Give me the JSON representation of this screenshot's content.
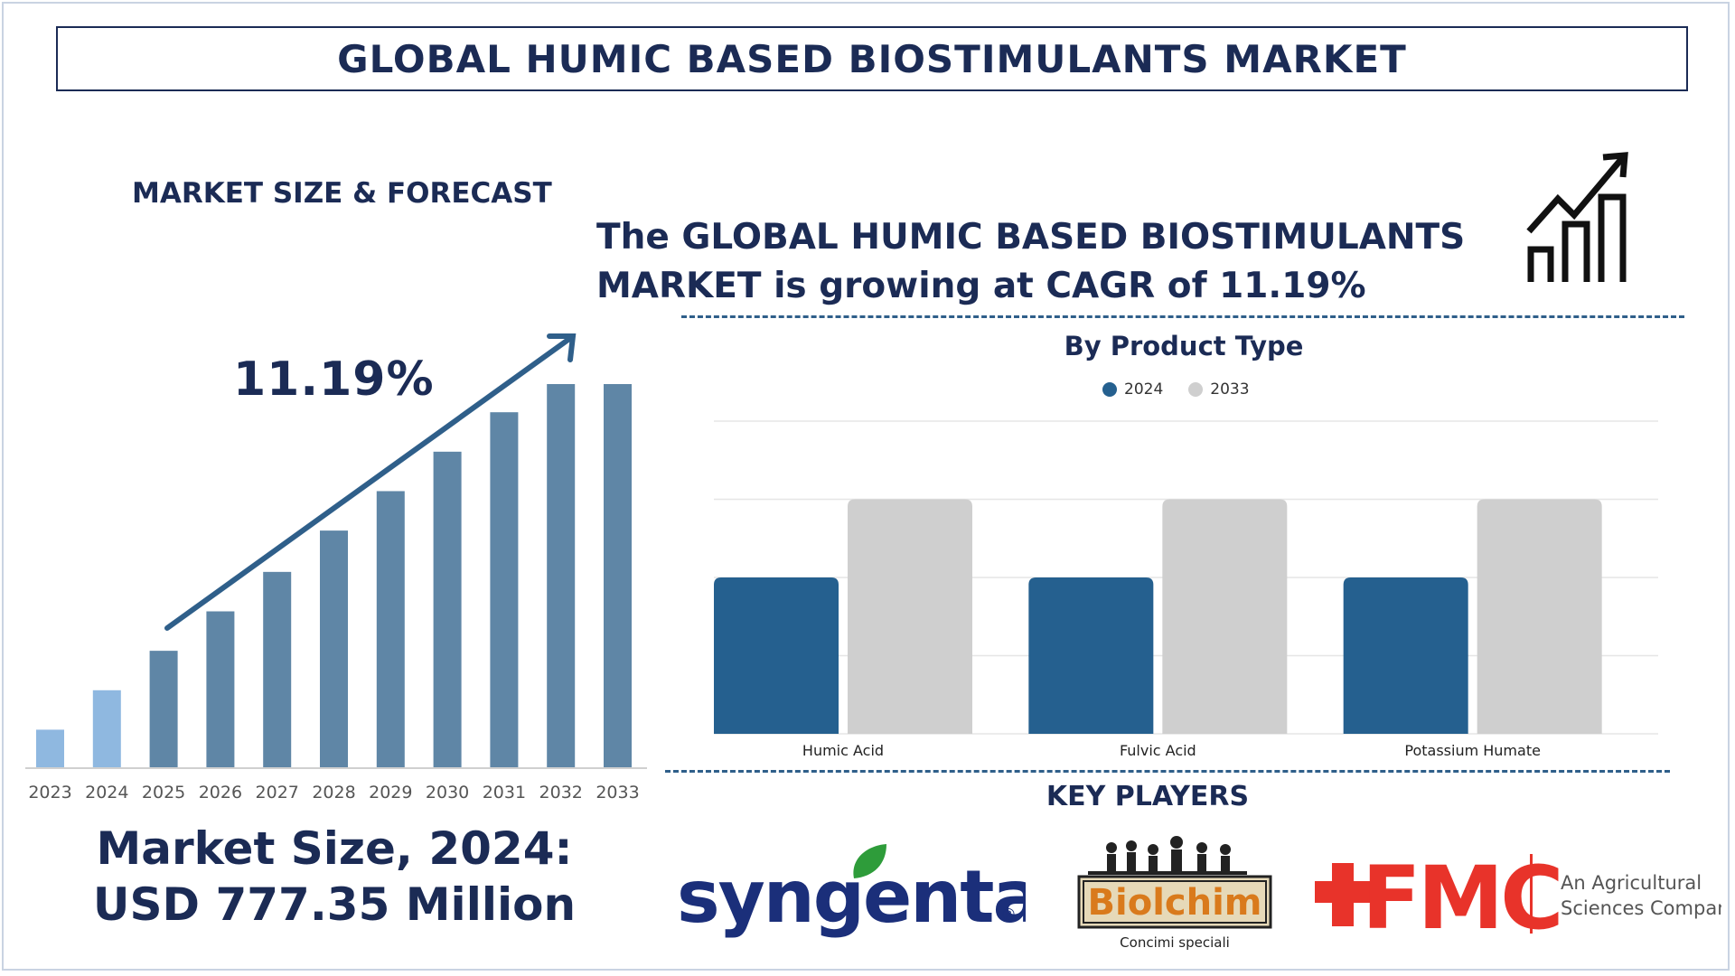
{
  "title": "GLOBAL HUMIC BASED BIOSTIMULANTS MARKET",
  "left": {
    "section_label": "MARKET SIZE & FORECAST",
    "cagr_label": "11.19%",
    "market_size_line1": "Market Size, 2024:",
    "market_size_line2": "USD 777.35 Million"
  },
  "headline": {
    "line1": "The GLOBAL HUMIC BASED BIOSTIMULANTS",
    "line2": "MARKET is growing at CAGR of 11.19%"
  },
  "product_chart_title": "By Product Type",
  "key_players_label": "KEY PLAYERS",
  "key_players": {
    "syngenta": "syngenta",
    "syngenta_mark": "®",
    "biolchim": "Biolchim",
    "biolchim_tagline": "Concimi speciali",
    "fmc": "FMC",
    "fmc_tagline_1": "An Agricultural",
    "fmc_tagline_2": "Sciences Company"
  },
  "icon": "growth-chart-icon",
  "colors": {
    "navy": "#1b2b55",
    "bar_forecast": "#5f86a6",
    "bar_historic": "#8fb8e0",
    "series_2024": "#25608f",
    "series_2033": "#cfcfcf",
    "fmc_red": "#e8332a",
    "syngenta_blue": "#1b2f7a",
    "syngenta_green": "#2e9c3a"
  },
  "chart_data": [
    {
      "type": "bar",
      "title": "",
      "categories": [
        "2023",
        "2024",
        "2025",
        "2026",
        "2027",
        "2028",
        "2029",
        "2030",
        "2031",
        "2032",
        "2033"
      ],
      "values": [
        1.0,
        2.05,
        3.1,
        4.15,
        5.2,
        6.3,
        7.35,
        8.4,
        9.45,
        10.2,
        10.2
      ],
      "historic_count": 2,
      "xlabel": "",
      "ylabel": "",
      "ylim": [
        0,
        10.2
      ],
      "annotation": "11.19%"
    },
    {
      "type": "bar",
      "title": "By Product Type",
      "categories": [
        "Humic Acid",
        "Fulvic Acid",
        "Potassium Humate"
      ],
      "series": [
        {
          "name": "2024",
          "values": [
            2,
            2,
            2
          ]
        },
        {
          "name": "2033",
          "values": [
            3,
            3,
            3
          ]
        }
      ],
      "ylim": [
        0,
        4
      ],
      "grid": true,
      "legend": "top-center"
    }
  ]
}
